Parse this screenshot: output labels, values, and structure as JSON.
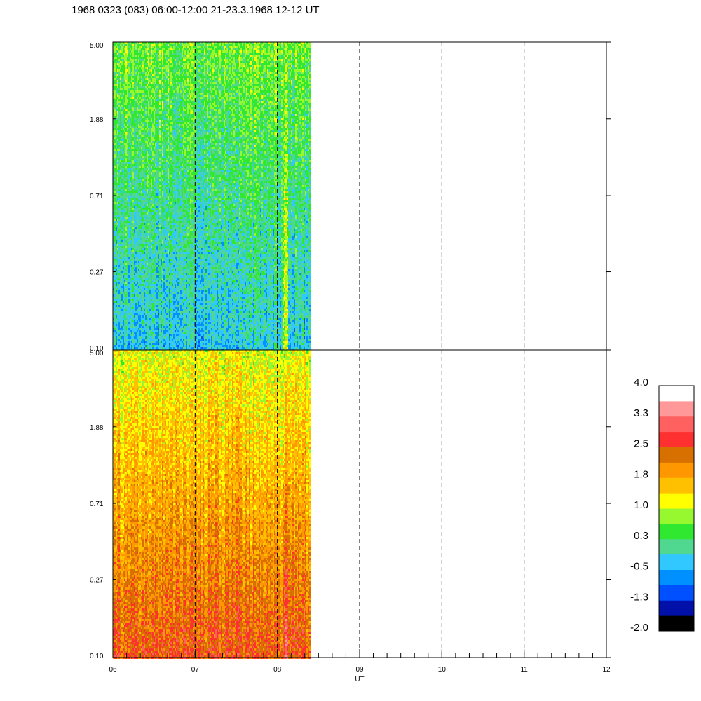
{
  "title": "1968 0323 (083) 06:00-12:00 21-23.3.1968  12-12 UT",
  "chart_data": {
    "type": "heatmap",
    "title": "1968 0323 (083) 06:00-12:00 21-23.3.1968  12-12 UT",
    "xlabel": "UT",
    "ylabel": "",
    "x_range": [
      6,
      12
    ],
    "x_tick_labels": [
      "06",
      "07",
      "08",
      "09",
      "10",
      "11",
      "12"
    ],
    "x_minor_step_hours": 0.1666667,
    "hour_dashed_lines": [
      7,
      8,
      9,
      10,
      11
    ],
    "data_end_hour": 8.4,
    "log_y": true,
    "y_range": [
      0.1,
      5.0
    ],
    "panels": [
      {
        "name": "upper",
        "y_tick_labels": [
          "0.10",
          "0.27",
          "0.71",
          "1.88",
          "5.00"
        ],
        "y_tick_values": [
          0.1,
          0.27,
          0.71,
          1.88,
          5.0
        ],
        "dominant_level_range": [
          -0.5,
          1.0
        ]
      },
      {
        "name": "lower",
        "y_tick_labels": [
          "0.10",
          "0.27",
          "0.71",
          "1.88",
          "5.00"
        ],
        "y_tick_values": [
          0.1,
          0.27,
          0.71,
          1.88,
          5.0
        ],
        "dominant_level_range": [
          1.0,
          2.5
        ]
      }
    ],
    "colorbar": {
      "range": [
        -2.0,
        4.0
      ],
      "tick_labels": [
        "4.0",
        "3.3",
        "2.5",
        "1.8",
        "1.0",
        "0.3",
        "-0.5",
        "-1.3",
        "-2.0"
      ],
      "colors_bottom_to_top": [
        "#000000",
        "#0010a8",
        "#0050ff",
        "#0090ff",
        "#30c8ff",
        "#50d890",
        "#30e830",
        "#98f830",
        "#ffff00",
        "#ffc000",
        "#ff9800",
        "#d87000",
        "#ff3030",
        "#ff6060",
        "#ff9898",
        "#ffffff"
      ]
    }
  }
}
